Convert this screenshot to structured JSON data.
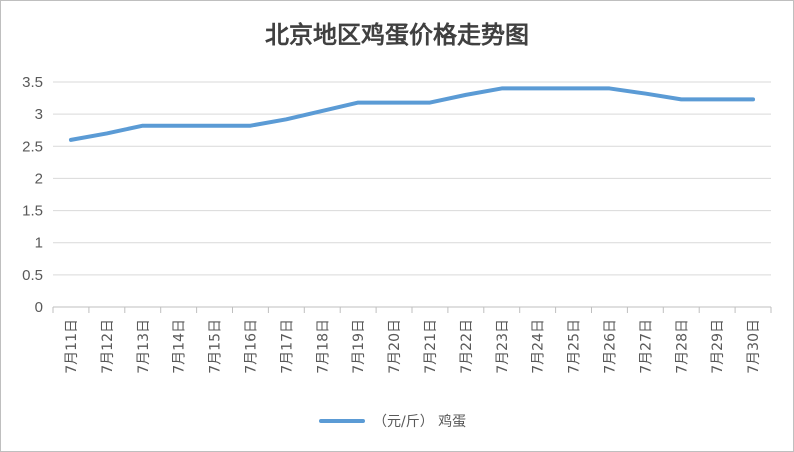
{
  "chart_data": {
    "type": "line",
    "title": "北京地区鸡蛋价格走势图",
    "categories": [
      "7月11日",
      "7月12日",
      "7月13日",
      "7月14日",
      "7月15日",
      "7月16日",
      "7月17日",
      "7月18日",
      "7月19日",
      "7月20日",
      "7月21日",
      "7月22日",
      "7月23日",
      "7月24日",
      "7月25日",
      "7月26日",
      "7月27日",
      "7月28日",
      "7月29日",
      "7月30日"
    ],
    "series": [
      {
        "name": "（元/斤）  鸡蛋",
        "color": "#5b9bd5",
        "values": [
          2.6,
          2.7,
          2.82,
          2.82,
          2.82,
          2.82,
          2.92,
          3.05,
          3.18,
          3.18,
          3.18,
          3.3,
          3.4,
          3.4,
          3.4,
          3.4,
          3.32,
          3.23,
          3.23,
          3.23
        ]
      }
    ],
    "y_ticks": [
      0,
      0.5,
      1,
      1.5,
      2,
      2.5,
      3,
      3.5
    ],
    "ylim": [
      0,
      3.5
    ],
    "xlabel": "",
    "ylabel": "",
    "grid": true,
    "legend_position": "bottom"
  }
}
